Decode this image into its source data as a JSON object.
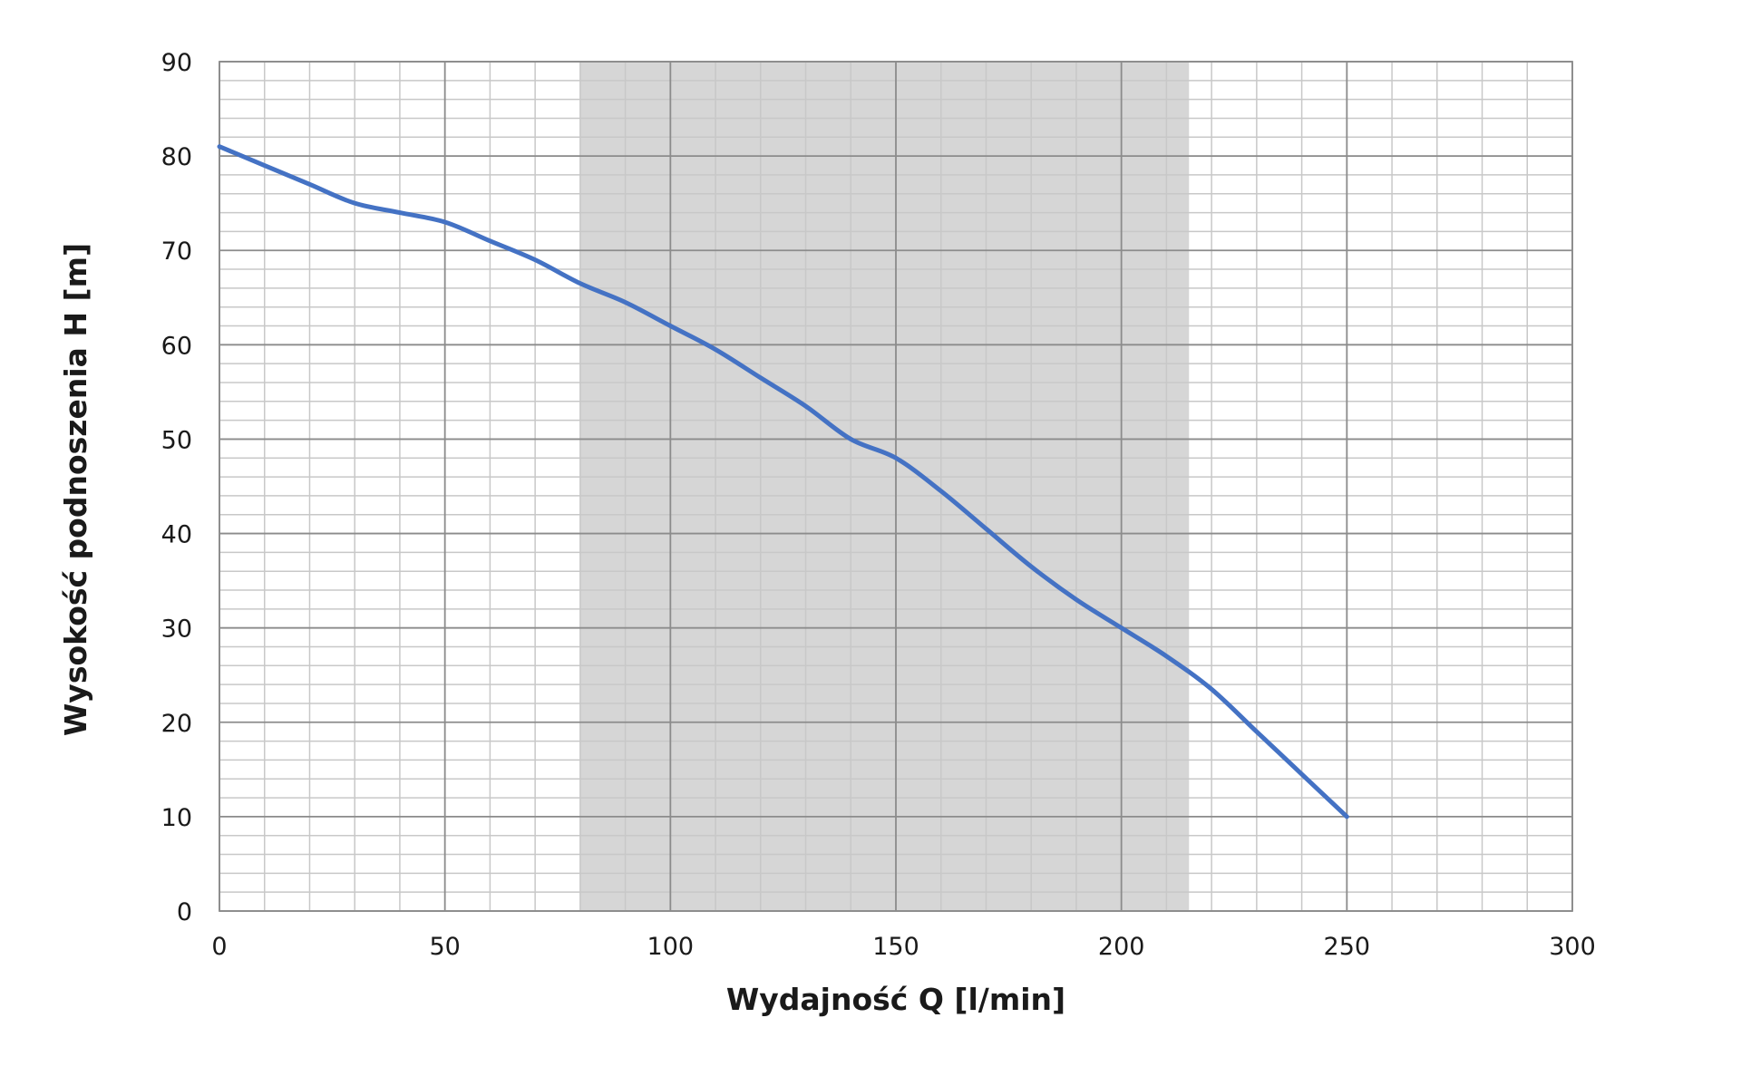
{
  "chart_data": {
    "type": "line",
    "title": "",
    "xlabel": "Wydajność Q [l/min]",
    "ylabel": "Wysokość podnoszenia H [m]",
    "xlim": [
      0,
      300
    ],
    "ylim": [
      0,
      90
    ],
    "x_ticks": [
      "0",
      "50",
      "100",
      "150",
      "200",
      "250",
      "300"
    ],
    "y_ticks": [
      "0",
      "10",
      "20",
      "30",
      "40",
      "50",
      "60",
      "70",
      "80",
      "90"
    ],
    "x_minor_step": 10,
    "y_minor_step": 2,
    "grid": true,
    "highlight_band": {
      "x_from": 80,
      "x_to": 215,
      "color": "#d6d6d6"
    },
    "series": [
      {
        "color": "#4472c4",
        "x": [
          0,
          10,
          20,
          30,
          40,
          50,
          60,
          70,
          80,
          90,
          100,
          110,
          120,
          130,
          140,
          150,
          160,
          170,
          180,
          190,
          200,
          210,
          220,
          230,
          240,
          250
        ],
        "y": [
          81,
          79,
          77,
          75,
          74,
          73,
          71,
          69,
          66.5,
          64.5,
          62,
          59.5,
          56.5,
          53.5,
          50,
          48,
          44.5,
          40.5,
          36.5,
          33,
          30,
          27,
          23.5,
          19,
          14.5,
          10
        ]
      }
    ]
  }
}
